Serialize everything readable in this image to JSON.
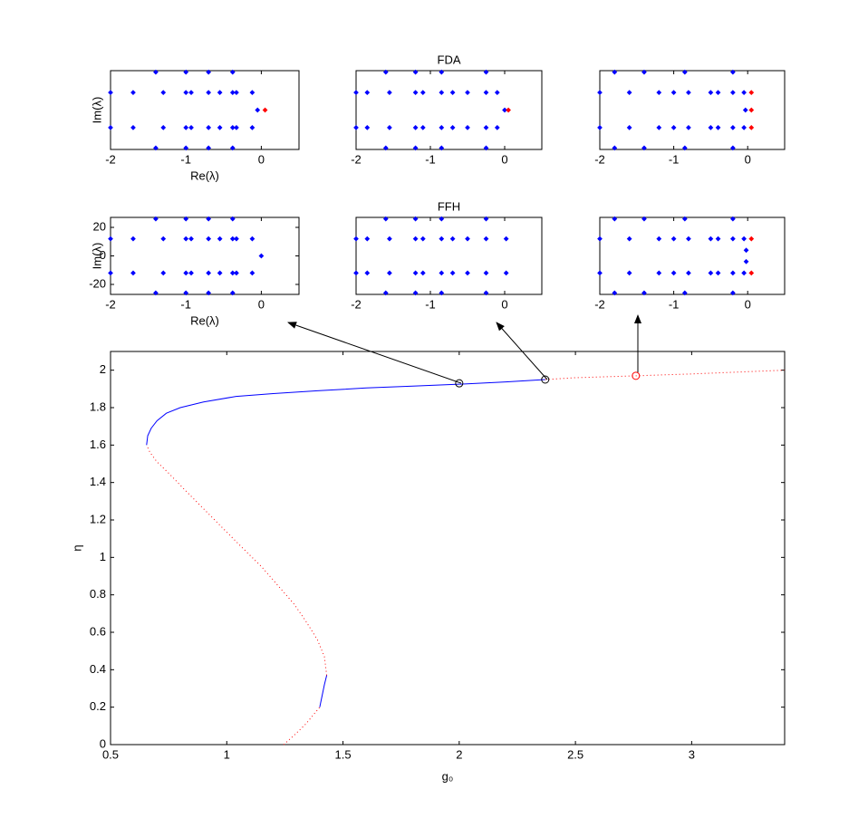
{
  "chart_data": [
    {
      "type": "scatter",
      "ylabel": "Im(λ)",
      "xlabel": "Re(λ)",
      "xlim": [
        -2,
        0.5
      ],
      "ylim": [
        -27,
        27
      ],
      "xticks": [
        -2,
        -1,
        0
      ],
      "yticks": [],
      "series": [
        {
          "color": "#0000ff",
          "x": [
            -1.4,
            -1.4,
            -1.0,
            -1.0,
            -0.7,
            -0.7,
            -0.38,
            -0.38,
            -2.0,
            -2.0,
            -1.7,
            -1.7,
            -1.3,
            -1.3,
            -1.0,
            -1.0,
            -0.93,
            -0.93,
            -0.7,
            -0.7,
            -0.55,
            -0.55,
            -0.38,
            -0.38,
            -0.33,
            -0.33,
            -0.12,
            -0.12,
            -0.05
          ],
          "values": [
            26,
            -26,
            26,
            -26,
            26,
            -26,
            26,
            -26,
            12,
            -12,
            12,
            -12,
            12,
            -12,
            12,
            -12,
            12,
            -12,
            12,
            -12,
            12,
            -12,
            12,
            -12,
            12,
            -12,
            12,
            -12,
            0
          ]
        },
        {
          "color": "#ff0000",
          "x": [
            0.05
          ],
          "values": [
            0
          ]
        }
      ]
    },
    {
      "type": "scatter",
      "title": "FDA",
      "xlim": [
        -2,
        0.5
      ],
      "ylim": [
        -27,
        27
      ],
      "xticks": [
        -2,
        -1,
        0
      ],
      "yticks": [],
      "series": [
        {
          "color": "#0000ff",
          "x": [
            -1.6,
            -1.6,
            -1.2,
            -1.2,
            -0.85,
            -0.85,
            -0.25,
            -0.25,
            -2.0,
            -2.0,
            -1.85,
            -1.85,
            -1.55,
            -1.55,
            -1.2,
            -1.2,
            -1.1,
            -1.1,
            -0.85,
            -0.85,
            -0.7,
            -0.7,
            -0.5,
            -0.5,
            -0.25,
            -0.25,
            -0.1,
            -0.1,
            0
          ],
          "values": [
            26,
            -26,
            26,
            -26,
            26,
            -26,
            26,
            -26,
            12,
            -12,
            12,
            -12,
            12,
            -12,
            12,
            -12,
            12,
            -12,
            12,
            -12,
            12,
            -12,
            12,
            -12,
            12,
            -12,
            12,
            -12,
            0
          ]
        },
        {
          "color": "#ff0000",
          "x": [
            0.05
          ],
          "values": [
            0
          ]
        }
      ]
    },
    {
      "type": "scatter",
      "xlim": [
        -2,
        0.5
      ],
      "ylim": [
        -27,
        27
      ],
      "xticks": [
        -2,
        -1,
        0
      ],
      "yticks": [],
      "series": [
        {
          "color": "#0000ff",
          "x": [
            -1.8,
            -1.8,
            -1.4,
            -1.4,
            -0.85,
            -0.85,
            -0.2,
            -0.2,
            -2.0,
            -2.0,
            -1.6,
            -1.6,
            -1.2,
            -1.2,
            -1.0,
            -1.0,
            -0.8,
            -0.8,
            -0.5,
            -0.5,
            -0.4,
            -0.4,
            -0.2,
            -0.2,
            -0.05,
            -0.05,
            -0.03
          ],
          "values": [
            26,
            -26,
            26,
            -26,
            26,
            -26,
            26,
            -26,
            12,
            -12,
            12,
            -12,
            12,
            -12,
            12,
            -12,
            12,
            -12,
            12,
            -12,
            12,
            -12,
            12,
            -12,
            12,
            -12,
            0
          ]
        },
        {
          "color": "#ff0000",
          "x": [
            0.05,
            0.05,
            0.05
          ],
          "values": [
            12,
            0,
            -12
          ]
        }
      ]
    },
    {
      "type": "scatter",
      "ylabel": "Im(λ)",
      "xlabel": "Re(λ)",
      "xlim": [
        -2,
        0.5
      ],
      "ylim": [
        -27,
        27
      ],
      "xticks": [
        -2,
        -1,
        0
      ],
      "yticks": [
        -20,
        0,
        20
      ],
      "series": [
        {
          "color": "#0000ff",
          "x": [
            -1.4,
            -1.4,
            -1.0,
            -1.0,
            -0.7,
            -0.7,
            -0.38,
            -0.38,
            -2.0,
            -2.0,
            -1.7,
            -1.7,
            -1.3,
            -1.3,
            -1.0,
            -1.0,
            -0.93,
            -0.93,
            -0.7,
            -0.7,
            -0.55,
            -0.55,
            -0.38,
            -0.38,
            -0.33,
            -0.33,
            -0.12,
            -0.12,
            0
          ],
          "values": [
            26,
            -26,
            26,
            -26,
            26,
            -26,
            26,
            -26,
            12,
            -12,
            12,
            -12,
            12,
            -12,
            12,
            -12,
            12,
            -12,
            12,
            -12,
            12,
            -12,
            12,
            -12,
            12,
            -12,
            12,
            -12,
            0
          ]
        }
      ]
    },
    {
      "type": "scatter",
      "title": "FFH",
      "xlim": [
        -2,
        0.5
      ],
      "ylim": [
        -27,
        27
      ],
      "xticks": [
        -2,
        -1,
        0
      ],
      "yticks": [],
      "series": [
        {
          "color": "#0000ff",
          "x": [
            -1.6,
            -1.6,
            -1.2,
            -1.2,
            -0.85,
            -0.85,
            -0.25,
            -0.25,
            -2.0,
            -2.0,
            -1.85,
            -1.85,
            -1.55,
            -1.55,
            -1.2,
            -1.2,
            -1.1,
            -1.1,
            -0.85,
            -0.85,
            -0.7,
            -0.7,
            -0.5,
            -0.5,
            -0.25,
            -0.25,
            0.02,
            0.02
          ],
          "values": [
            26,
            -26,
            26,
            -26,
            26,
            -26,
            26,
            -26,
            12,
            -12,
            12,
            -12,
            12,
            -12,
            12,
            -12,
            12,
            -12,
            12,
            -12,
            12,
            -12,
            12,
            -12,
            12,
            -12,
            12,
            -12
          ]
        }
      ]
    },
    {
      "type": "scatter",
      "xlim": [
        -2,
        0.5
      ],
      "ylim": [
        -27,
        27
      ],
      "xticks": [
        -2,
        -1,
        0
      ],
      "yticks": [],
      "series": [
        {
          "color": "#0000ff",
          "x": [
            -1.8,
            -1.8,
            -1.4,
            -1.4,
            -0.85,
            -0.85,
            -0.2,
            -0.2,
            -2.0,
            -2.0,
            -1.6,
            -1.6,
            -1.2,
            -1.2,
            -1.0,
            -1.0,
            -0.8,
            -0.8,
            -0.5,
            -0.5,
            -0.4,
            -0.4,
            -0.2,
            -0.2,
            -0.05,
            -0.05,
            -0.02,
            -0.02
          ],
          "values": [
            26,
            -26,
            26,
            -26,
            26,
            -26,
            26,
            -26,
            12,
            -12,
            12,
            -12,
            12,
            -12,
            12,
            -12,
            12,
            -12,
            12,
            -12,
            12,
            -12,
            12,
            -12,
            12,
            -12,
            4,
            -4
          ]
        },
        {
          "color": "#ff0000",
          "x": [
            0.05,
            0.05
          ],
          "values": [
            12,
            -12
          ]
        }
      ]
    },
    {
      "type": "line",
      "xlabel": "g₀",
      "ylabel": "η",
      "xlim": [
        0.5,
        3.4
      ],
      "ylim": [
        0,
        2.1
      ],
      "xticks": [
        0.5,
        1,
        1.5,
        2,
        2.5,
        3
      ],
      "yticks": [
        0,
        0.2,
        0.4,
        0.6,
        0.8,
        1,
        1.2,
        1.4,
        1.6,
        1.8,
        2
      ],
      "series": [
        {
          "color": "#0000ff",
          "linestyle": "-",
          "x": [
            1.4,
            1.41,
            1.42,
            1.43,
            null,
            0.655,
            0.66,
            0.675,
            0.7,
            0.74,
            0.8,
            0.9,
            1.04,
            1.2,
            1.39,
            1.6,
            1.8,
            2.0,
            2.2,
            2.37
          ],
          "values": [
            0.2,
            0.26,
            0.32,
            0.37,
            null,
            1.6,
            1.65,
            1.69,
            1.73,
            1.77,
            1.8,
            1.83,
            1.86,
            1.875,
            1.89,
            1.905,
            1.915,
            1.925,
            1.937,
            1.95
          ]
        },
        {
          "color": "#ff0000",
          "linestyle": ":",
          "x": [
            1.245,
            1.29,
            1.34,
            1.38,
            1.4,
            null,
            1.43,
            1.42,
            1.39,
            1.34,
            1.29,
            1.22,
            1.15,
            1.06,
            0.98,
            0.9,
            0.82,
            0.75,
            0.7,
            0.67,
            0.655,
            null,
            2.37,
            2.5,
            2.76,
            3.0,
            3.2,
            3.4
          ],
          "values": [
            0,
            0.05,
            0.11,
            0.17,
            0.2,
            null,
            0.37,
            0.47,
            0.56,
            0.66,
            0.75,
            0.85,
            0.95,
            1.06,
            1.16,
            1.26,
            1.36,
            1.45,
            1.51,
            1.56,
            1.6,
            null,
            1.95,
            1.96,
            1.97,
            1.98,
            1.99,
            2.0
          ]
        },
        {
          "color": "#000000",
          "marker": "o",
          "x": [
            2.0,
            2.37
          ],
          "values": [
            1.93,
            1.95
          ]
        },
        {
          "color": "#ff0000",
          "marker": "o",
          "x": [
            2.76
          ],
          "values": [
            1.97
          ]
        }
      ]
    }
  ]
}
